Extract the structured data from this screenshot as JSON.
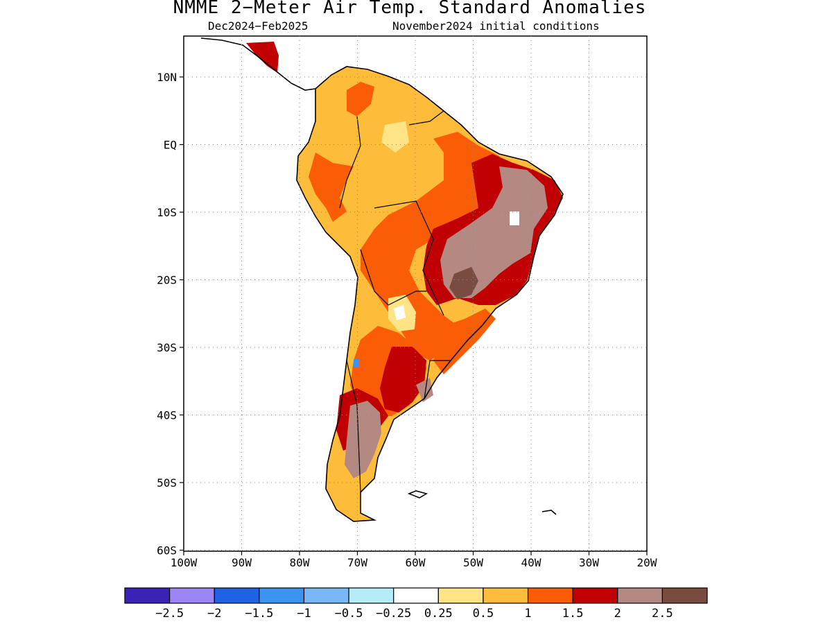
{
  "title": "NMME 2−Meter Air Temp. Standard Anomalies",
  "subtitle_period": "Dec2024−Feb2025",
  "subtitle_init": "November2024 initial conditions",
  "lat_labels": [
    "10N",
    "EQ",
    "10S",
    "20S",
    "30S",
    "40S",
    "50S",
    "60S"
  ],
  "lon_labels": [
    "100W",
    "90W",
    "80W",
    "70W",
    "60W",
    "50W",
    "40W",
    "30W",
    "20W"
  ],
  "colorbar": {
    "colors": [
      "#3a22b7",
      "#9d85f5",
      "#1f62e3",
      "#3d94f0",
      "#78b8f6",
      "#b4ecf8",
      "#ffffff",
      "#fee387",
      "#fdbd3a",
      "#fb5c06",
      "#c10003",
      "#b38982",
      "#7a4b3f"
    ],
    "labels": [
      "−2.5",
      "−2",
      "−1.5",
      "−1",
      "−0.5",
      "−0.25",
      "0.25",
      "0.5",
      "1",
      "1.5",
      "2",
      "2.5"
    ]
  }
}
